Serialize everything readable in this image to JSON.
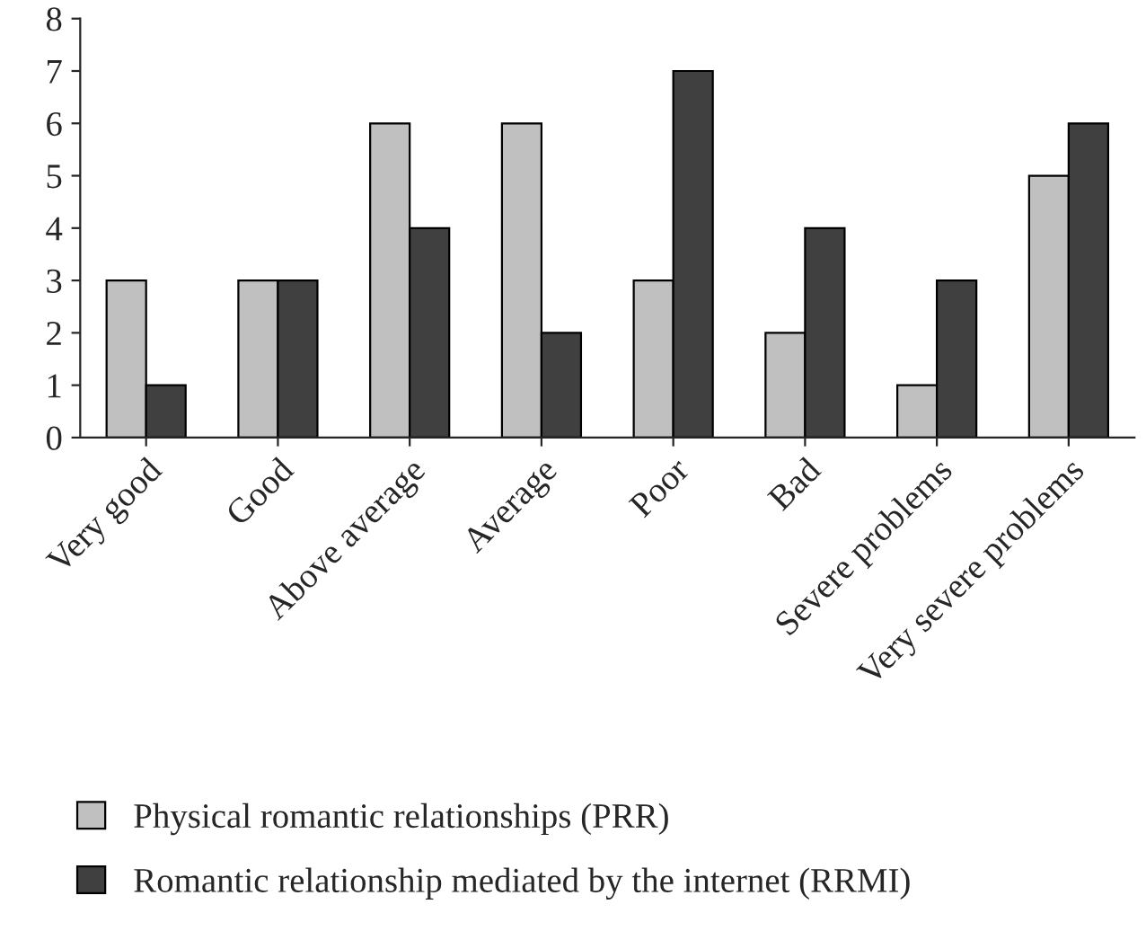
{
  "chart_data": {
    "type": "bar",
    "categories": [
      "Very good",
      "Good",
      "Above average",
      "Average",
      "Poor",
      "Bad",
      "Severe problems",
      "Very severe problems"
    ],
    "series": [
      {
        "name": "Physical romantic relationships (PRR)",
        "color": "#c0c0c0",
        "values": [
          3,
          3,
          6,
          6,
          3,
          2,
          1,
          5
        ]
      },
      {
        "name": "Romantic relationship mediated by the internet (RRMI)",
        "color": "#404040",
        "values": [
          1,
          3,
          4,
          2,
          7,
          4,
          3,
          6
        ]
      }
    ],
    "ylim": [
      0,
      8
    ],
    "yticks": [
      0,
      1,
      2,
      3,
      4,
      5,
      6,
      7,
      8
    ],
    "grid": false,
    "legend": "bottom"
  }
}
